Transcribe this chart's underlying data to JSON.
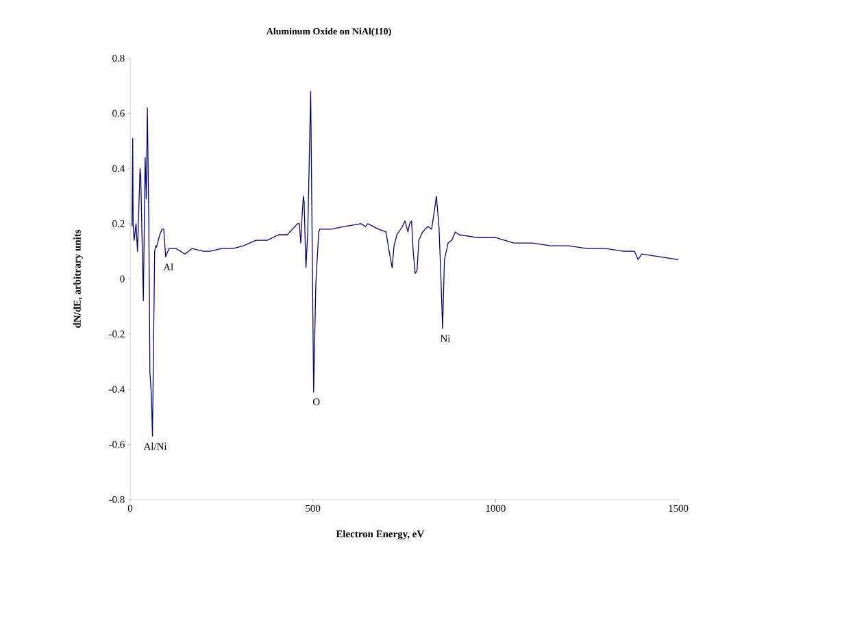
{
  "chart_data": {
    "type": "line",
    "title": "Aluminum Oxide on NiAl(110)",
    "xlabel": "Electron Energy, eV",
    "ylabel": "dN/dE, arbitrary units",
    "xlim": [
      0,
      1500
    ],
    "xticks": [
      0,
      500,
      1000,
      1500
    ],
    "ylim": [
      -0.8,
      0.8
    ],
    "yticks": [
      -0.8,
      -0.6,
      -0.4,
      -0.2,
      0,
      0.2,
      0.4,
      0.6,
      0.8
    ],
    "grid": false,
    "marker": "none",
    "line_style": "solid",
    "annotations": [
      {
        "text": "Al",
        "x": 97,
        "y": 0.08
      },
      {
        "text": "Al/Ni",
        "x": 61,
        "y": -0.57
      },
      {
        "text": "O",
        "x": 502,
        "y": -0.41
      },
      {
        "text": "Ni",
        "x": 855,
        "y": -0.18
      }
    ],
    "series": [
      {
        "color": "#000080",
        "x": [
          5,
          7,
          8,
          11,
          16,
          20,
          27,
          29,
          36,
          41,
          44,
          47,
          51,
          54,
          58,
          61,
          67,
          70,
          72,
          81,
          87,
          92,
          97,
          106,
          112,
          125,
          150,
          169,
          200,
          219,
          250,
          281,
          310,
          344,
          375,
          406,
          430,
          444,
          458,
          463,
          467,
          470,
          474,
          476,
          481,
          486,
          494,
          502,
          508,
          516,
          519,
          550,
          587,
          631,
          644,
          650,
          680,
          700,
          710,
          717,
          722,
          730,
          745,
          752,
          760,
          765,
          770,
          775,
          780,
          785,
          790,
          800,
          815,
          825,
          835,
          838,
          845,
          850,
          855,
          860,
          870,
          880,
          890,
          900,
          950,
          1000,
          1050,
          1100,
          1150,
          1200,
          1250,
          1300,
          1350,
          1380,
          1390,
          1400,
          1450,
          1500
        ],
        "values": [
          0.19,
          0.51,
          0.2,
          0.14,
          0.2,
          0.1,
          0.4,
          0.37,
          -0.08,
          0.44,
          0.29,
          0.62,
          0.21,
          -0.34,
          -0.42,
          -0.57,
          0.1,
          0.12,
          0.115,
          0.16,
          0.18,
          0.18,
          0.08,
          0.11,
          0.11,
          0.11,
          0.09,
          0.11,
          0.1,
          0.1,
          0.11,
          0.11,
          0.12,
          0.14,
          0.14,
          0.16,
          0.16,
          0.18,
          0.2,
          0.2,
          0.13,
          0.22,
          0.3,
          0.28,
          0.04,
          0.17,
          0.68,
          -0.41,
          -0.02,
          0.17,
          0.18,
          0.18,
          0.19,
          0.2,
          0.19,
          0.2,
          0.18,
          0.17,
          0.09,
          0.04,
          0.12,
          0.16,
          0.19,
          0.21,
          0.17,
          0.2,
          0.21,
          0.09,
          0.02,
          0.03,
          0.14,
          0.17,
          0.19,
          0.18,
          0.27,
          0.3,
          0.19,
          0.02,
          -0.18,
          0.07,
          0.13,
          0.14,
          0.17,
          0.16,
          0.15,
          0.15,
          0.13,
          0.13,
          0.12,
          0.12,
          0.11,
          0.11,
          0.1,
          0.1,
          0.07,
          0.09,
          0.08,
          0.07
        ]
      }
    ]
  }
}
